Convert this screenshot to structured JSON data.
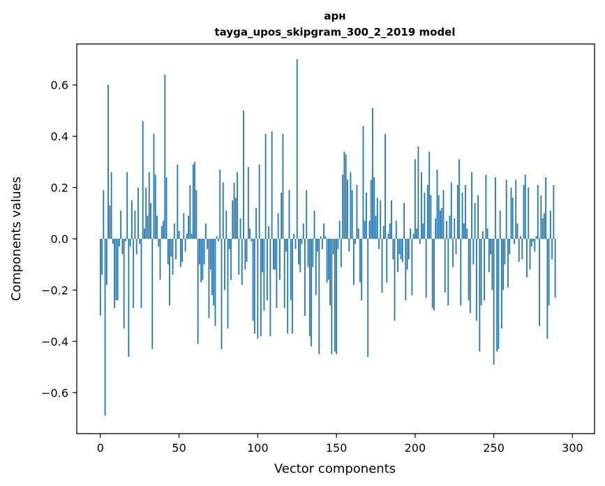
{
  "chart_data": {
    "type": "bar",
    "title": "арн",
    "subtitle": "tayga_upos_skipgram_300_2_2019 model",
    "xlabel": "Vector components",
    "ylabel": "Components values",
    "xlim": [
      -15,
      314
    ],
    "ylim": [
      -0.76,
      0.76
    ],
    "xticks": [
      0,
      50,
      100,
      150,
      200,
      250,
      300
    ],
    "yticks": [
      -0.6,
      -0.4,
      -0.2,
      0.0,
      0.2,
      0.4,
      0.6
    ],
    "xtick_labels": [
      "0",
      "50",
      "100",
      "150",
      "200",
      "250",
      "300"
    ],
    "ytick_labels": [
      "−0.6",
      "−0.4",
      "−0.2",
      "0.0",
      "0.2",
      "0.4",
      "0.6"
    ],
    "grid": false,
    "bar_color": "#1f77b4",
    "values": [
      -0.3,
      -0.14,
      0.19,
      -0.69,
      -0.18,
      0.6,
      0.13,
      0.26,
      -0.02,
      -0.27,
      -0.24,
      -0.24,
      -0.03,
      0.11,
      -0.06,
      -0.35,
      -0.01,
      0.26,
      -0.46,
      -0.03,
      0.15,
      -0.27,
      0.11,
      -0.06,
      0.2,
      -0.02,
      -0.27,
      0.46,
      0.04,
      0.2,
      0.09,
      0.26,
      0.14,
      -0.43,
      0.41,
      0.25,
      0.09,
      -0.03,
      -0.16,
      0.05,
      0.07,
      0.64,
      0.24,
      -0.1,
      -0.26,
      -0.07,
      -0.14,
      0.06,
      -0.08,
      0.29,
      0.03,
      -0.11,
      -0.09,
      0.1,
      -0.05,
      0.02,
      0.09,
      0.21,
      0.02,
      0.29,
      0.3,
      0.19,
      -0.41,
      -0.1,
      -0.17,
      -0.16,
      -0.1,
      0.06,
      -0.04,
      -0.31,
      -0.12,
      -0.22,
      -0.26,
      -0.34,
      0.01,
      -0.01,
      0.27,
      -0.43,
      0.22,
      -0.2,
      0.11,
      -0.35,
      -0.04,
      -0.16,
      0.15,
      0.22,
      0.16,
      0.26,
      -0.14,
      0.08,
      -0.18,
      0.5,
      -0.12,
      -0.09,
      0.28,
      0.04,
      -0.01,
      -0.32,
      -0.37,
      0.12,
      -0.39,
      0.29,
      -0.38,
      -0.13,
      -0.28,
      0.41,
      -0.24,
      0.05,
      -0.38,
      0.42,
      -0.12,
      -0.12,
      -0.27,
      0.1,
      -0.16,
      0.18,
      0.41,
      -0.27,
      -0.05,
      -0.37,
      0.19,
      -0.24,
      -0.37,
      0.02,
      -0.04,
      0.7,
      -0.1,
      -0.13,
      -0.02,
      0.06,
      -0.3,
      0.19,
      -0.11,
      -0.38,
      -0.42,
      -0.11,
      0.11,
      -0.22,
      -0.05,
      -0.45,
      0.01,
      -0.04,
      0.06,
      0.01,
      -0.17,
      -0.16,
      -0.26,
      -0.45,
      -0.06,
      -0.44,
      -0.45,
      -0.04,
      0.07,
      -0.11,
      0.25,
      0.34,
      0.33,
      0.23,
      -0.05,
      0.26,
      0.19,
      -0.18,
      -0.02,
      0.21,
      0.04,
      -0.17,
      -0.24,
      0.44,
      0.07,
      0.18,
      -0.46,
      0.07,
      0.23,
      0.51,
      0.24,
      0.09,
      0.16,
      -0.04,
      0.15,
      -0.21,
      0.05,
      0.41,
      -0.17,
      0.02,
      0.06,
      0.15,
      -0.08,
      -0.32,
      0.07,
      -0.13,
      -0.06,
      -0.08,
      -0.09,
      0.14,
      -0.24,
      -0.12,
      -0.08,
      0.04,
      -0.22,
      0.02,
      0.31,
      0.04,
      0.36,
      -0.02,
      0.26,
      0.06,
      0.18,
      -0.23,
      0.21,
      0.34,
      0.17,
      -0.27,
      -0.28,
      0.08,
      0.27,
      0.17,
      0.11,
      0.12,
      0.19,
      -0.21,
      0.07,
      -0.26,
      0.09,
      0.22,
      -0.11,
      0.08,
      -0.06,
      0.21,
      0.31,
      -0.26,
      0.18,
      0.06,
      0.21,
      0.04,
      -0.24,
      -0.29,
      0.26,
      -0.1,
      0.14,
      -0.32,
      0.17,
      -0.44,
      -0.26,
      0.03,
      -0.24,
      0.25,
      0.04,
      -0.13,
      -0.06,
      -0.2,
      -0.49,
      0.24,
      -0.44,
      -0.43,
      0.11,
      -0.35,
      -0.2,
      -0.1,
      0.23,
      -0.19,
      -0.06,
      0.2,
      0.16,
      -0.02,
      0.23,
      0.06,
      -0.09,
      0.01,
      -0.08,
      0.21,
      0.25,
      -0.15,
      0.2,
      -0.12,
      -0.03,
      -0.01,
      -0.05,
      0.01,
      0.21,
      -0.34,
      0.17,
      0.08,
      0.1,
      0.24,
      -0.39,
      -0.26,
      0.11,
      -0.08,
      0.21,
      -0.23
    ]
  }
}
